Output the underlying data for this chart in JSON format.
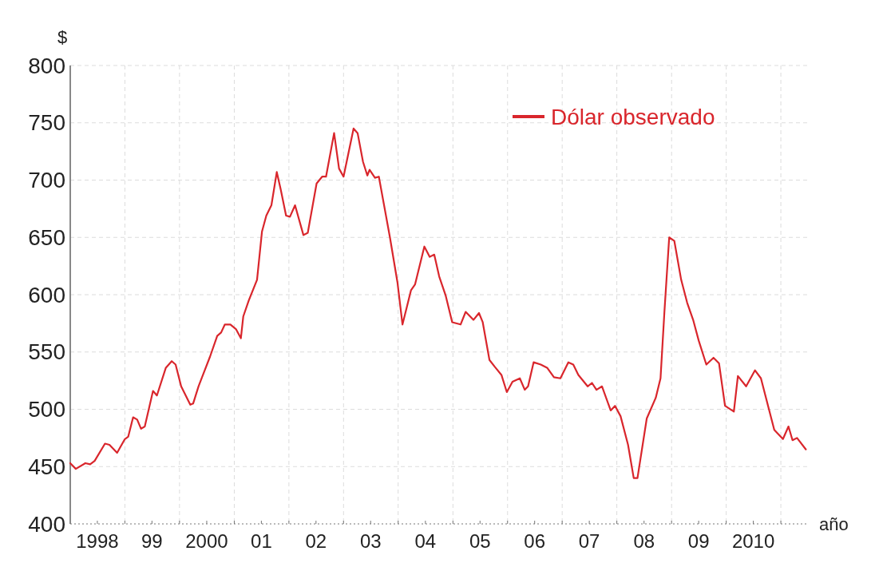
{
  "chart_data": {
    "type": "line",
    "ylabel": "$",
    "xlabel": "año",
    "x": [
      "1998-01-01",
      "1998-02-07",
      "1998-04-12",
      "1998-05-14",
      "1998-06-13",
      "1998-08-21",
      "1998-09-20",
      "1998-11-10",
      "1999-01-01",
      "1999-01-23",
      "1999-02-25",
      "1999-03-24",
      "1999-04-19",
      "1999-05-14",
      "1999-07-08",
      "1999-08-03",
      "1999-10-01",
      "1999-11-10",
      "1999-12-06",
      "2000-01-12",
      "2000-03-13",
      "2000-04-01",
      "2000-05-07",
      "2000-07-23",
      "2000-09-09",
      "2000-10-05",
      "2000-10-30",
      "2000-12-06",
      "2001-01-12",
      "2001-02-14",
      "2001-03-02",
      "2001-04-08",
      "2001-06-02",
      "2001-07-05",
      "2001-08-03",
      "2001-09-06",
      "2001-10-12",
      "2001-11-07",
      "2001-12-13",
      "2002-01-08",
      "2002-02-11",
      "2002-04-08",
      "2002-05-07",
      "2002-07-05",
      "2002-08-11",
      "2002-09-06",
      "2002-10-30",
      "2002-12-02",
      "2003-01-01",
      "2003-03-09",
      "2003-04-05",
      "2003-05-11",
      "2003-06-09",
      "2003-06-24",
      "2003-07-30",
      "2003-08-25",
      "2003-11-07",
      "2003-12-27",
      "2004-01-30",
      "2004-03-27",
      "2004-04-23",
      "2004-06-24",
      "2004-07-30",
      "2004-08-29",
      "2004-10-01",
      "2004-11-14",
      "2004-12-27",
      "2005-02-21",
      "2005-03-27",
      "2005-05-18",
      "2005-06-24",
      "2005-07-19",
      "2005-09-02",
      "2005-10-08",
      "2005-11-21",
      "2005-12-27",
      "2006-02-03",
      "2006-03-24",
      "2006-04-26",
      "2006-05-18",
      "2006-06-24",
      "2006-08-11",
      "2006-09-24",
      "2006-11-07",
      "2006-12-20",
      "2007-02-11",
      "2007-03-16",
      "2007-04-19",
      "2007-06-20",
      "2007-07-19",
      "2007-08-18",
      "2007-09-24",
      "2007-11-21",
      "2007-12-20",
      "2008-01-26",
      "2008-03-16",
      "2008-04-23",
      "2008-05-18",
      "2008-07-19",
      "2008-09-17",
      "2008-10-19",
      "2008-11-14",
      "2008-12-16",
      "2009-01-19",
      "2009-03-06",
      "2009-04-15",
      "2009-05-25",
      "2009-07-01",
      "2009-08-21",
      "2009-10-08",
      "2009-11-14",
      "2009-12-24",
      "2010-02-21",
      "2010-03-20",
      "2010-05-14",
      "2010-07-12",
      "2010-08-21",
      "2010-11-18",
      "2011-01-15",
      "2011-02-21",
      "2011-03-20",
      "2011-04-19",
      "2011-06-17"
    ],
    "series": [
      {
        "name": "Dólar observado",
        "color": "#d9262c",
        "values": [
          453,
          448,
          453,
          452,
          455,
          470,
          469,
          462,
          474,
          476,
          493,
          491,
          483,
          485,
          516,
          512,
          536,
          542,
          539,
          520,
          504,
          505,
          520,
          546,
          564,
          567,
          574,
          574,
          570,
          562,
          581,
          595,
          613,
          655,
          669,
          678,
          707,
          692,
          669,
          668,
          678,
          652,
          654,
          697,
          703,
          703,
          741,
          710,
          703,
          745,
          741,
          716,
          704,
          709,
          702,
          703,
          650,
          611,
          574,
          604,
          609,
          642,
          633,
          635,
          616,
          599,
          576,
          574,
          585,
          578,
          584,
          576,
          543,
          537,
          530,
          515,
          524,
          527,
          517,
          520,
          541,
          539,
          536,
          528,
          527,
          541,
          539,
          530,
          520,
          523,
          517,
          520,
          499,
          503,
          494,
          469,
          440,
          440,
          492,
          510,
          527,
          585,
          650,
          647,
          613,
          593,
          578,
          560,
          539,
          545,
          540,
          503,
          498,
          529,
          520,
          534,
          527,
          482,
          474,
          485,
          473,
          475,
          465
        ]
      }
    ],
    "xlim": [
      "1998-01-01",
      "2011-07-01"
    ],
    "xticks": [
      {
        "value": "1998-07-01",
        "label": "1998"
      },
      {
        "value": "1999-01-01",
        "label": null
      },
      {
        "value": "1999-07-01",
        "label": "99"
      },
      {
        "value": "2000-01-01",
        "label": null
      },
      {
        "value": "2000-07-01",
        "label": "2000"
      },
      {
        "value": "2001-01-01",
        "label": null
      },
      {
        "value": "2001-07-01",
        "label": "01"
      },
      {
        "value": "2002-01-01",
        "label": null
      },
      {
        "value": "2002-07-01",
        "label": "02"
      },
      {
        "value": "2003-01-01",
        "label": null
      },
      {
        "value": "2003-07-01",
        "label": "03"
      },
      {
        "value": "2004-01-01",
        "label": null
      },
      {
        "value": "2004-07-01",
        "label": "04"
      },
      {
        "value": "2005-01-01",
        "label": null
      },
      {
        "value": "2005-07-01",
        "label": "05"
      },
      {
        "value": "2006-01-01",
        "label": null
      },
      {
        "value": "2006-07-01",
        "label": "06"
      },
      {
        "value": "2007-01-01",
        "label": null
      },
      {
        "value": "2007-07-01",
        "label": "07"
      },
      {
        "value": "2008-01-01",
        "label": null
      },
      {
        "value": "2008-07-01",
        "label": "08"
      },
      {
        "value": "2009-01-01",
        "label": null
      },
      {
        "value": "2009-07-01",
        "label": "09"
      },
      {
        "value": "2010-01-01",
        "label": null
      },
      {
        "value": "2010-07-01",
        "label": "2010"
      },
      {
        "value": "2011-01-01",
        "label": null
      }
    ],
    "ylim": [
      400,
      800
    ],
    "yticks": [
      400,
      450,
      500,
      550,
      600,
      650,
      700,
      750,
      800
    ],
    "grid": true,
    "legend": "top right",
    "marker": "none",
    "line_style": "solid"
  }
}
